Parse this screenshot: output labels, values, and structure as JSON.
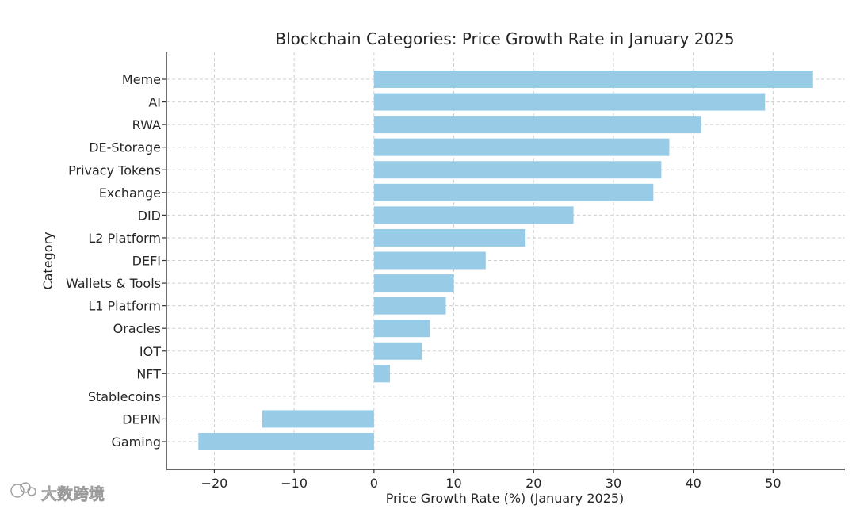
{
  "chart_data": {
    "type": "bar",
    "orientation": "horizontal",
    "title": "Blockchain Categories: Price Growth Rate in January 2025",
    "xlabel": "Price Growth Rate (%) (January 2025)",
    "ylabel": "Category",
    "xlim": [
      -26,
      59
    ],
    "xticks": [
      -20,
      -10,
      0,
      10,
      20,
      30,
      40,
      50
    ],
    "xtick_labels": [
      "−20",
      "−10",
      "0",
      "10",
      "20",
      "30",
      "40",
      "50"
    ],
    "grid": true,
    "bar_color": "#98cbe6",
    "categories": [
      "Meme",
      "AI",
      "RWA",
      "DE-Storage",
      "Privacy Tokens",
      "Exchange",
      "DID",
      "L2 Platform",
      "DEFI",
      "Wallets & Tools",
      "L1 Platform",
      "Oracles",
      "IOT",
      "NFT",
      "Stablecoins",
      "DEPIN",
      "Gaming"
    ],
    "values": [
      55,
      49,
      41,
      37,
      36,
      35,
      25,
      19,
      14,
      10,
      9,
      7,
      6,
      2,
      0,
      -14,
      -22
    ]
  },
  "watermark": {
    "text": "大数跨境",
    "logo_icon": "cloud-logo-icon"
  }
}
